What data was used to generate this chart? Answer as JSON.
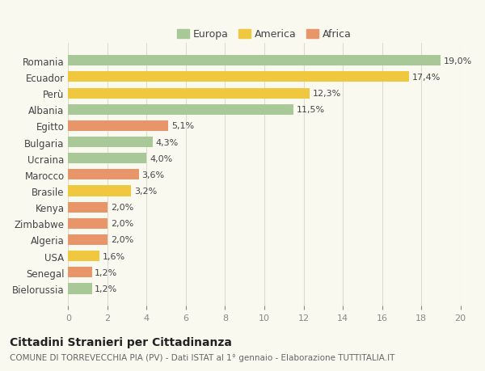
{
  "countries": [
    "Romania",
    "Ecuador",
    "Perù",
    "Albania",
    "Egitto",
    "Bulgaria",
    "Ucraina",
    "Marocco",
    "Brasile",
    "Kenya",
    "Zimbabwe",
    "Algeria",
    "USA",
    "Senegal",
    "Bielorussia"
  ],
  "values": [
    19.0,
    17.4,
    12.3,
    11.5,
    5.1,
    4.3,
    4.0,
    3.6,
    3.2,
    2.0,
    2.0,
    2.0,
    1.6,
    1.2,
    1.2
  ],
  "labels": [
    "19,0%",
    "17,4%",
    "12,3%",
    "11,5%",
    "5,1%",
    "4,3%",
    "4,0%",
    "3,6%",
    "3,2%",
    "2,0%",
    "2,0%",
    "2,0%",
    "1,6%",
    "1,2%",
    "1,2%"
  ],
  "continents": [
    "Europa",
    "America",
    "America",
    "Europa",
    "Africa",
    "Europa",
    "Europa",
    "Africa",
    "America",
    "Africa",
    "Africa",
    "Africa",
    "America",
    "Africa",
    "Europa"
  ],
  "colors": {
    "Europa": "#a8c897",
    "America": "#f0d080",
    "Africa": "#e8a878"
  },
  "legend_colors": {
    "Europa": "#a8c897",
    "America": "#f0c840",
    "Africa": "#e8956a"
  },
  "bar_colors": [
    "#a8c897",
    "#f0c840",
    "#f0c840",
    "#a8c897",
    "#e8956a",
    "#a8c897",
    "#a8c897",
    "#e8956a",
    "#f0c840",
    "#e8956a",
    "#e8956a",
    "#e8956a",
    "#f0c840",
    "#e8956a",
    "#a8c897"
  ],
  "xlim": [
    0,
    20
  ],
  "xticks": [
    0,
    2,
    4,
    6,
    8,
    10,
    12,
    14,
    16,
    18,
    20
  ],
  "title": "Cittadini Stranieri per Cittadinanza",
  "subtitle": "COMUNE DI TORREVECCHIA PIA (PV) - Dati ISTAT al 1° gennaio - Elaborazione TUTTITALIA.IT",
  "bg_color": "#f9f9f0",
  "grid_color": "#ddddcc"
}
